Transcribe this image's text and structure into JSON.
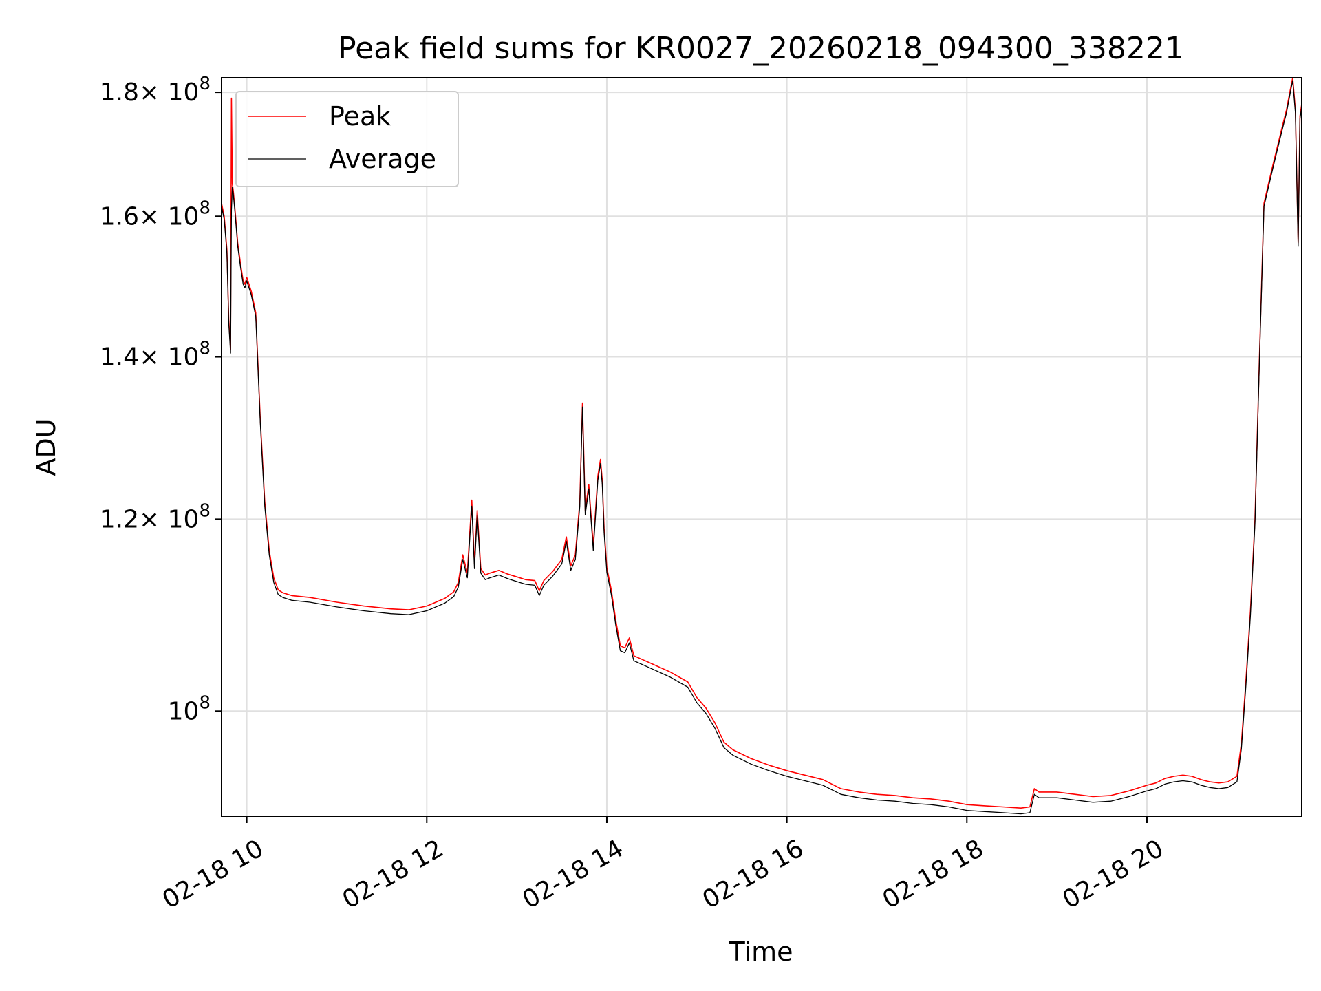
{
  "chart_data": {
    "type": "line",
    "title": "Peak field sums for KR0027_20260218_094300_338221",
    "xlabel": "Time",
    "ylabel": "ADU",
    "yscale": "log",
    "xlim": [
      9.72,
      21.72
    ],
    "ylim": [
      90500000,
      182500000
    ],
    "grid": true,
    "legend_position": "top-left",
    "x_ticks": [
      {
        "value": 10,
        "label": "02-18 10"
      },
      {
        "value": 12,
        "label": "02-18 12"
      },
      {
        "value": 14,
        "label": "02-18 14"
      },
      {
        "value": 16,
        "label": "02-18 16"
      },
      {
        "value": 18,
        "label": "02-18 18"
      },
      {
        "value": 20,
        "label": "02-18 20"
      }
    ],
    "y_ticks": [
      {
        "value": 100000000,
        "base": "10",
        "exp": "8",
        "mantissa": ""
      },
      {
        "value": 120000000,
        "base": "× 10",
        "exp": "8",
        "mantissa": "1.2"
      },
      {
        "value": 140000000,
        "base": "× 10",
        "exp": "8",
        "mantissa": "1.4"
      },
      {
        "value": 160000000,
        "base": "× 10",
        "exp": "8",
        "mantissa": "1.6"
      },
      {
        "value": 180000000,
        "base": "× 10",
        "exp": "8",
        "mantissa": "1.8"
      }
    ],
    "series": [
      {
        "name": "Peak",
        "color": "#ff0000",
        "x": [
          9.72,
          9.75,
          9.78,
          9.8,
          9.82,
          9.83,
          9.84,
          9.85,
          9.87,
          9.9,
          9.93,
          9.96,
          9.98,
          10.0,
          10.05,
          10.1,
          10.15,
          10.2,
          10.25,
          10.3,
          10.35,
          10.4,
          10.5,
          10.7,
          11.0,
          11.3,
          11.6,
          11.8,
          12.0,
          12.2,
          12.3,
          12.35,
          12.4,
          12.45,
          12.5,
          12.53,
          12.56,
          12.6,
          12.65,
          12.7,
          12.8,
          12.9,
          13.0,
          13.1,
          13.2,
          13.25,
          13.3,
          13.4,
          13.5,
          13.55,
          13.6,
          13.65,
          13.7,
          13.73,
          13.76,
          13.8,
          13.85,
          13.9,
          13.93,
          13.95,
          13.97,
          14.0,
          14.05,
          14.1,
          14.15,
          14.2,
          14.25,
          14.3,
          14.5,
          14.7,
          14.9,
          15.0,
          15.1,
          15.2,
          15.3,
          15.4,
          15.6,
          15.8,
          16.0,
          16.2,
          16.4,
          16.6,
          16.8,
          17.0,
          17.2,
          17.4,
          17.6,
          17.8,
          18.0,
          18.2,
          18.4,
          18.6,
          18.7,
          18.75,
          18.8,
          19.0,
          19.2,
          19.4,
          19.6,
          19.8,
          20.0,
          20.1,
          20.2,
          20.3,
          20.4,
          20.5,
          20.6,
          20.7,
          20.8,
          20.9,
          21.0,
          21.05,
          21.1,
          21.15,
          21.2,
          21.25,
          21.3,
          21.35,
          21.4,
          21.45,
          21.5,
          21.55,
          21.6,
          21.62,
          21.65,
          21.68,
          21.7,
          21.72
        ],
        "y": [
          162000000,
          160000000,
          155000000,
          145000000,
          141000000,
          179000000,
          165000000,
          164000000,
          161000000,
          156000000,
          153000000,
          150500000,
          150000000,
          151000000,
          149000000,
          146000000,
          132000000,
          122000000,
          116500000,
          113500000,
          112200000,
          111900000,
          111600000,
          111400000,
          110900000,
          110500000,
          110200000,
          110100000,
          110500000,
          111300000,
          112000000,
          113000000,
          116000000,
          114000000,
          122200000,
          115000000,
          121000000,
          114500000,
          113800000,
          114000000,
          114300000,
          113900000,
          113600000,
          113300000,
          113200000,
          112100000,
          113200000,
          114200000,
          115500000,
          118000000,
          114800000,
          116000000,
          122000000,
          134000000,
          121000000,
          124000000,
          117000000,
          125000000,
          127000000,
          124500000,
          119000000,
          114600000,
          112200000,
          109000000,
          106400000,
          106200000,
          107200000,
          105400000,
          104600000,
          103800000,
          102800000,
          101300000,
          100300000,
          98900000,
          97100000,
          96400000,
          95600000,
          95000000,
          94500000,
          94100000,
          93700000,
          92900000,
          92600000,
          92400000,
          92300000,
          92100000,
          92000000,
          91800000,
          91500000,
          91400000,
          91300000,
          91200000,
          91300000,
          92900000,
          92600000,
          92600000,
          92400000,
          92200000,
          92300000,
          92700000,
          93200000,
          93400000,
          93800000,
          94000000,
          94100000,
          94000000,
          93700000,
          93500000,
          93400000,
          93500000,
          94000000,
          97000000,
          103000000,
          110000000,
          120000000,
          140000000,
          162000000,
          165000000,
          168000000,
          171000000,
          174000000,
          177000000,
          181000000,
          182500000,
          177000000,
          156000000,
          176000000,
          178000000
        ],
        "line_width": 1.6
      },
      {
        "name": "Average",
        "color": "#000000",
        "x": [
          9.72,
          9.75,
          9.78,
          9.8,
          9.82,
          9.83,
          9.84,
          9.85,
          9.87,
          9.9,
          9.93,
          9.96,
          9.98,
          10.0,
          10.05,
          10.1,
          10.15,
          10.2,
          10.25,
          10.3,
          10.35,
          10.4,
          10.5,
          10.7,
          11.0,
          11.3,
          11.6,
          11.8,
          12.0,
          12.2,
          12.3,
          12.35,
          12.4,
          12.45,
          12.5,
          12.53,
          12.56,
          12.6,
          12.65,
          12.7,
          12.8,
          12.9,
          13.0,
          13.1,
          13.2,
          13.25,
          13.3,
          13.4,
          13.5,
          13.55,
          13.6,
          13.65,
          13.7,
          13.73,
          13.76,
          13.8,
          13.85,
          13.9,
          13.93,
          13.95,
          13.97,
          14.0,
          14.05,
          14.1,
          14.15,
          14.2,
          14.25,
          14.3,
          14.5,
          14.7,
          14.9,
          15.0,
          15.1,
          15.2,
          15.3,
          15.4,
          15.6,
          15.8,
          16.0,
          16.2,
          16.4,
          16.6,
          16.8,
          17.0,
          17.2,
          17.4,
          17.6,
          17.8,
          18.0,
          18.2,
          18.4,
          18.6,
          18.7,
          18.75,
          18.8,
          19.0,
          19.2,
          19.4,
          19.6,
          19.8,
          20.0,
          20.1,
          20.2,
          20.3,
          20.4,
          20.5,
          20.6,
          20.7,
          20.8,
          20.9,
          21.0,
          21.05,
          21.1,
          21.15,
          21.2,
          21.25,
          21.3,
          21.35,
          21.4,
          21.45,
          21.5,
          21.55,
          21.6,
          21.62,
          21.65,
          21.68,
          21.7,
          21.72
        ],
        "y": [
          161500000,
          159500000,
          154500000,
          144500000,
          140500000,
          161000000,
          164500000,
          163500000,
          160500000,
          155500000,
          152500000,
          150000000,
          149500000,
          150500000,
          148500000,
          145500000,
          131500000,
          121500000,
          116000000,
          113000000,
          111700000,
          111400000,
          111100000,
          110900000,
          110400000,
          110000000,
          109700000,
          109600000,
          110000000,
          110800000,
          111500000,
          112500000,
          115500000,
          113500000,
          121500000,
          114500000,
          120500000,
          114000000,
          113300000,
          113500000,
          113800000,
          113400000,
          113100000,
          112800000,
          112700000,
          111600000,
          112700000,
          113700000,
          115000000,
          117500000,
          114300000,
          115500000,
          121500000,
          133500000,
          120500000,
          123500000,
          116500000,
          124500000,
          126500000,
          124000000,
          118500000,
          114100000,
          111700000,
          108500000,
          105900000,
          105700000,
          106700000,
          104900000,
          104100000,
          103300000,
          102300000,
          100800000,
          99800000,
          98400000,
          96600000,
          95900000,
          95100000,
          94500000,
          94000000,
          93600000,
          93200000,
          92400000,
          92100000,
          91900000,
          91800000,
          91600000,
          91500000,
          91300000,
          91000000,
          90900000,
          90800000,
          90700000,
          90800000,
          92400000,
          92100000,
          92100000,
          91900000,
          91700000,
          91800000,
          92200000,
          92700000,
          92900000,
          93300000,
          93500000,
          93600000,
          93500000,
          93200000,
          93000000,
          92900000,
          93000000,
          93500000,
          96500000,
          102500000,
          109500000,
          119500000,
          139500000,
          161500000,
          164500000,
          167500000,
          170500000,
          173500000,
          176500000,
          180500000,
          182000000,
          176500000,
          155500000,
          175500000,
          177500000
        ],
        "line_width": 1.3
      }
    ]
  }
}
